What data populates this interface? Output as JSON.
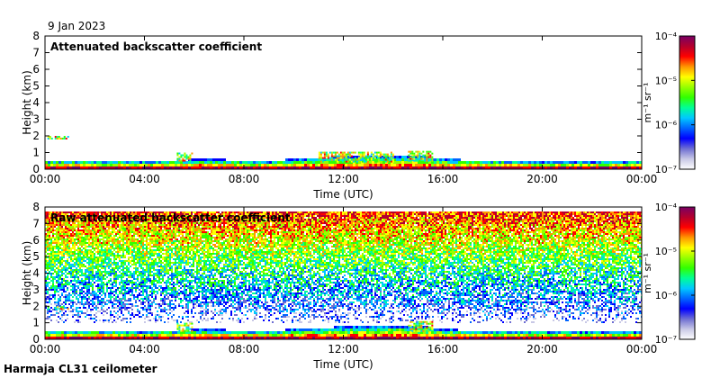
{
  "date_label": "9 Jan 2023",
  "footer_label": "Harmaja CL31 ceilometer",
  "colors": {
    "axis": "#000000",
    "cmap": [
      "#ffffff",
      "#c8c8e6",
      "#6e6ed2",
      "#0000ff",
      "#0064ff",
      "#00c8ff",
      "#00ff96",
      "#32ff00",
      "#96ff00",
      "#ffff00",
      "#ff9600",
      "#ff0000",
      "#b4002d",
      "#780064"
    ]
  },
  "chart_data": [
    {
      "type": "heatmap",
      "title": "Attenuated backscatter coefficient",
      "xlabel": "Time (UTC)",
      "ylabel": "Height (km)",
      "x_ticks": [
        "00:00",
        "04:00",
        "08:00",
        "12:00",
        "16:00",
        "20:00",
        "00:00"
      ],
      "xlim_hours": [
        0,
        24
      ],
      "y_ticks": [
        "0",
        "1",
        "2",
        "3",
        "4",
        "5",
        "6",
        "7",
        "8"
      ],
      "ylim_km": [
        0,
        8
      ],
      "colorbar": {
        "scale": "log",
        "range": [
          1e-07,
          0.0001
        ],
        "ticks": [
          "10⁻⁷",
          "10⁻⁶",
          "10⁻⁵",
          "10⁻⁴"
        ],
        "label": "m⁻¹ sr⁻¹"
      },
      "features": {
        "boundary_layer_top_km": [
          [
            0,
            0.45
          ],
          [
            2,
            0.45
          ],
          [
            4,
            0.4
          ],
          [
            5,
            0.45
          ],
          [
            6,
            0.5
          ],
          [
            7,
            0.5
          ],
          [
            8,
            0.45
          ],
          [
            9,
            0.4
          ],
          [
            10,
            0.55
          ],
          [
            11,
            0.6
          ],
          [
            12,
            0.7
          ],
          [
            13,
            0.75
          ],
          [
            14,
            0.75
          ],
          [
            15,
            0.7
          ],
          [
            16,
            0.55
          ],
          [
            17,
            0.45
          ],
          [
            20,
            0.4
          ],
          [
            24,
            0.4
          ]
        ],
        "clouds": [
          {
            "t0": 0.1,
            "t1": 0.9,
            "h0": 1.85,
            "h1": 2.0
          },
          {
            "t0": 5.3,
            "t1": 5.9,
            "h0": 0.5,
            "h1": 1.0
          },
          {
            "t0": 14.6,
            "t1": 15.6,
            "h0": 0.5,
            "h1": 1.1
          },
          {
            "t0": 11.0,
            "t1": 14.0,
            "h0": 0.5,
            "h1": 1.05
          }
        ],
        "noise_above_km": null
      }
    },
    {
      "type": "heatmap",
      "title": "Raw attenuated backscatter coefficient",
      "xlabel": "Time (UTC)",
      "ylabel": "Height (km)",
      "x_ticks": [
        "00:00",
        "04:00",
        "08:00",
        "12:00",
        "16:00",
        "20:00",
        "00:00"
      ],
      "xlim_hours": [
        0,
        24
      ],
      "y_ticks": [
        "0",
        "1",
        "2",
        "3",
        "4",
        "5",
        "6",
        "7",
        "8"
      ],
      "ylim_km": [
        0,
        8
      ],
      "colorbar": {
        "scale": "log",
        "range": [
          1e-07,
          0.0001
        ],
        "ticks": [
          "10⁻⁷",
          "10⁻⁶",
          "10⁻⁵",
          "10⁻⁴"
        ],
        "label": "m⁻¹ sr⁻¹"
      },
      "features": {
        "boundary_layer_top_km": [
          [
            0,
            0.45
          ],
          [
            2,
            0.45
          ],
          [
            4,
            0.4
          ],
          [
            5,
            0.45
          ],
          [
            6,
            0.5
          ],
          [
            7,
            0.5
          ],
          [
            8,
            0.45
          ],
          [
            9,
            0.4
          ],
          [
            10,
            0.55
          ],
          [
            11,
            0.6
          ],
          [
            12,
            0.7
          ],
          [
            13,
            0.75
          ],
          [
            14,
            0.75
          ],
          [
            15,
            0.7
          ],
          [
            16,
            0.55
          ],
          [
            17,
            0.45
          ],
          [
            20,
            0.4
          ],
          [
            24,
            0.4
          ]
        ],
        "clouds": [
          {
            "t0": 0.1,
            "t1": 0.9,
            "h0": 1.85,
            "h1": 2.0
          },
          {
            "t0": 5.3,
            "t1": 5.9,
            "h0": 0.5,
            "h1": 1.0
          },
          {
            "t0": 14.6,
            "t1": 15.6,
            "h0": 0.5,
            "h1": 1.1
          }
        ],
        "noise_above_km": 0.9,
        "data_top_km": 7.7
      }
    }
  ]
}
